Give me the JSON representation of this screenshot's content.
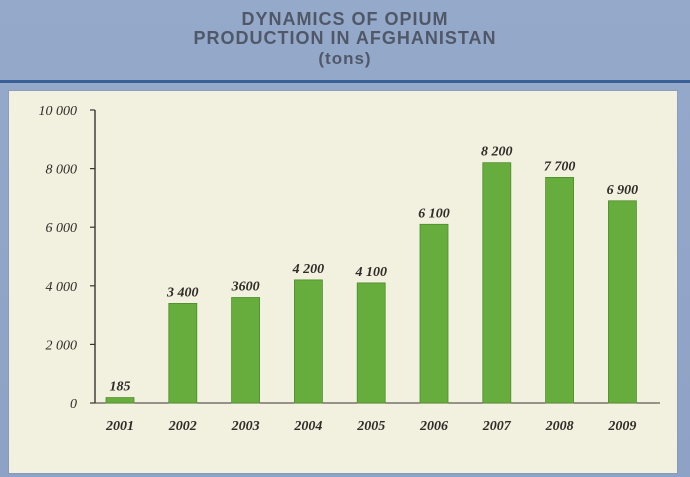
{
  "title": {
    "line1": "DYNAMICS OF OPIUM",
    "line2": "PRODUCTION IN AFGHANISTAN",
    "line3": "(tons)"
  },
  "colors": {
    "background": "#8fa3c6",
    "panel": "#f2f0df",
    "bar": "#67ad3d",
    "bar_edge": "#4e8d2c",
    "axis": "#38352f"
  },
  "chart_data": {
    "type": "bar",
    "categories": [
      "2001",
      "2002",
      "2003",
      "2004",
      "2005",
      "2006",
      "2007",
      "2008",
      "2009"
    ],
    "values": [
      185,
      3400,
      3600,
      4200,
      4100,
      6100,
      8200,
      7700,
      6900
    ],
    "value_labels": [
      "185",
      "3 400",
      "3600",
      "4 200",
      "4 100",
      "6 100",
      "8 200",
      "7 700",
      "6 900"
    ],
    "ylim": [
      0,
      10000
    ],
    "y_ticks": [
      {
        "value": 0,
        "label": "0"
      },
      {
        "value": 2000,
        "label": "2 000"
      },
      {
        "value": 4000,
        "label": "4 000"
      },
      {
        "value": 6000,
        "label": "6 000"
      },
      {
        "value": 8000,
        "label": "8 000"
      },
      {
        "value": 10000,
        "label": "10 000"
      }
    ],
    "grid": false,
    "legend": "none"
  }
}
